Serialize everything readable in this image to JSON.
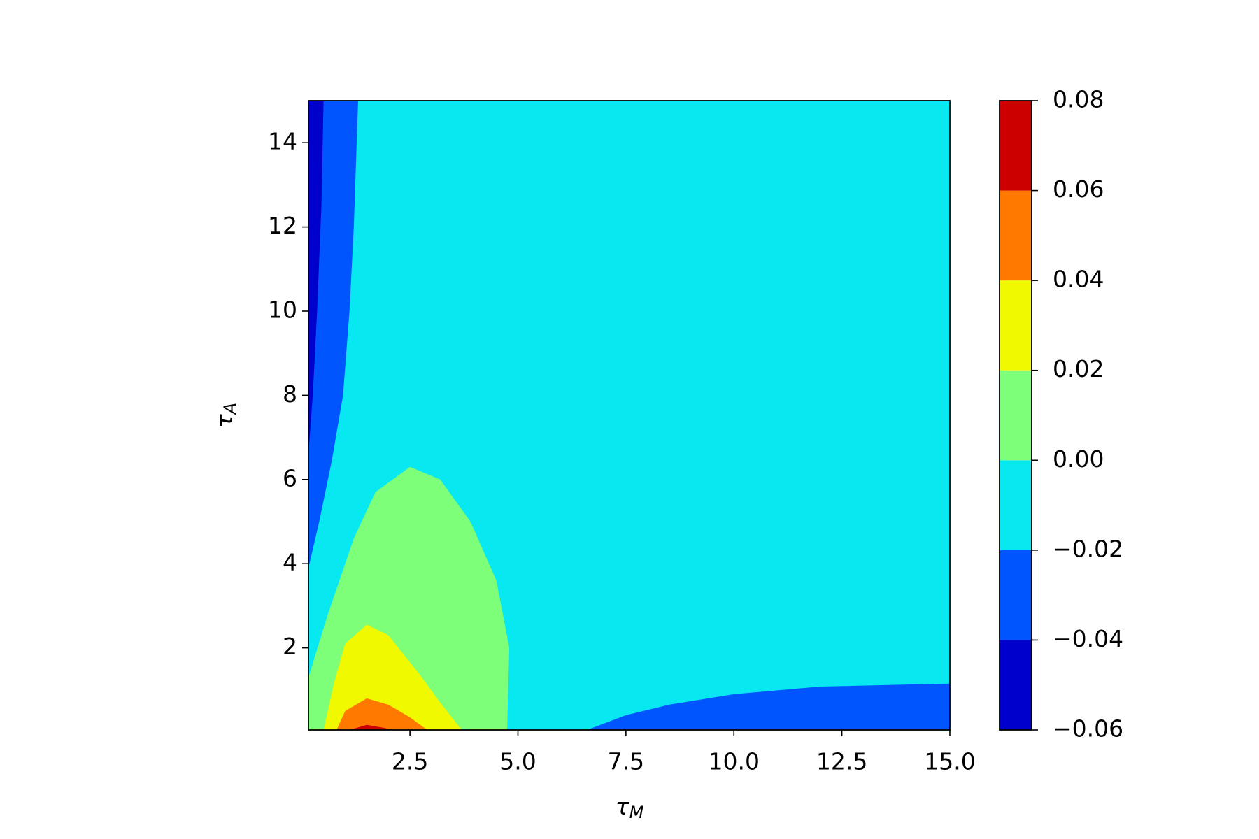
{
  "chart_data": {
    "type": "contourf",
    "x_label": {
      "symbol": "τ",
      "subscript": "M"
    },
    "y_label": {
      "symbol": "τ",
      "subscript": "A"
    },
    "xlim": [
      0.15,
      15
    ],
    "ylim": [
      0.05,
      15
    ],
    "xticks": [
      2.5,
      {
        "value": 5,
        "label": "5.0"
      },
      7.5,
      {
        "value": 10,
        "label": "10.0"
      },
      12.5,
      {
        "value": 15,
        "label": "15.0"
      }
    ],
    "yticks": [
      2,
      4,
      6,
      8,
      10,
      12,
      14
    ],
    "regions": [
      {
        "color": "#08e8f0",
        "x": [
          0.15,
          15,
          15,
          0.15
        ],
        "y": [
          0.05,
          0.05,
          15,
          15
        ]
      },
      {
        "color": "#0055ff",
        "x": [
          0.15,
          0.4,
          0.7,
          0.95,
          1.1,
          1.2,
          1.3,
          0.15
        ],
        "y": [
          3.9,
          5,
          6.5,
          8,
          10,
          12,
          15,
          15
        ]
      },
      {
        "color": "#0000cd",
        "x": [
          0.15,
          0.25,
          0.35,
          0.45,
          0.5,
          0.15
        ],
        "y": [
          6.6,
          8,
          10,
          12.5,
          15,
          15
        ]
      },
      {
        "color": "#0055ff",
        "x": [
          6.6,
          7.5,
          8.5,
          10,
          12,
          15,
          15
        ],
        "y": [
          0.05,
          0.4,
          0.65,
          0.9,
          1.08,
          1.15,
          0.05
        ]
      },
      {
        "color": "#7dff7a",
        "x": [
          0.15,
          0.15,
          0.6,
          1.2,
          1.7,
          2.5,
          3.2,
          3.9,
          4.5,
          4.8,
          4.75
        ],
        "y": [
          0.05,
          1.3,
          2.8,
          4.6,
          5.7,
          6.3,
          6.0,
          5.0,
          3.6,
          2,
          0.05
        ]
      },
      {
        "color": "#f0f900",
        "x": [
          0.5,
          0.75,
          1.0,
          1.5,
          2.0,
          2.7,
          3.2,
          3.7
        ],
        "y": [
          0.05,
          1.2,
          2.1,
          2.55,
          2.3,
          1.4,
          0.7,
          0.05
        ]
      },
      {
        "color": "#ff7800",
        "x": [
          0.8,
          1.0,
          1.5,
          2.0,
          2.5,
          2.9
        ],
        "y": [
          0.05,
          0.5,
          0.8,
          0.65,
          0.35,
          0.05
        ]
      },
      {
        "color": "#cd0000",
        "x": [
          1.1,
          1.5,
          1.9,
          2.1
        ],
        "y": [
          0.05,
          0.17,
          0.1,
          0.05
        ]
      }
    ],
    "colorbar": {
      "ticks": [
        {
          "value": -0.06,
          "label": "−0.06"
        },
        {
          "value": -0.04,
          "label": "−0.04"
        },
        {
          "value": -0.02,
          "label": "−0.02"
        },
        {
          "value": 0,
          "label": "0.00"
        },
        0.02,
        0.04,
        0.06,
        0.08
      ],
      "colors": [
        "#0000cd",
        "#0055ff",
        "#08e8f0",
        "#7dff7a",
        "#f0f900",
        "#ff7800",
        "#cd0000"
      ]
    }
  }
}
